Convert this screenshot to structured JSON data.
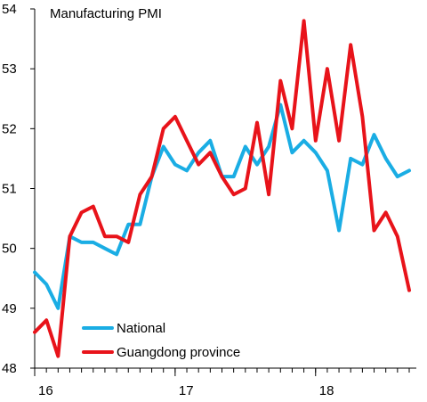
{
  "chart_data": {
    "type": "line",
    "title": "Manufacturing  PMI",
    "xlabel": "",
    "ylabel": "",
    "ylim": [
      48,
      54
    ],
    "yticks": [
      48,
      49,
      50,
      51,
      52,
      53,
      54
    ],
    "xlim": [
      0,
      32
    ],
    "xticks": [
      {
        "x": 0,
        "label": "16"
      },
      {
        "x": 12,
        "label": "17"
      },
      {
        "x": 24,
        "label": "18"
      }
    ],
    "grid": false,
    "legend_position": "bottom-left",
    "series": [
      {
        "name": "National",
        "color": "#1AADE4",
        "x": [
          0,
          1,
          2,
          3,
          4,
          5,
          6,
          7,
          8,
          9,
          10,
          11,
          12,
          13,
          14,
          15,
          16,
          17,
          18,
          19,
          20,
          21,
          22,
          23,
          24,
          25,
          26,
          27,
          28,
          29,
          30,
          31,
          32
        ],
        "values": [
          49.6,
          49.4,
          49.0,
          50.2,
          50.1,
          50.1,
          50.0,
          49.9,
          50.4,
          50.4,
          51.2,
          51.7,
          51.4,
          51.3,
          51.6,
          51.8,
          51.2,
          51.2,
          51.7,
          51.4,
          51.7,
          52.4,
          51.6,
          51.8,
          51.6,
          51.3,
          50.3,
          51.5,
          51.4,
          51.9,
          51.5,
          51.2,
          51.3
        ]
      },
      {
        "name": "Guangdong province",
        "color": "#E8131A",
        "x": [
          0,
          1,
          2,
          3,
          4,
          5,
          6,
          7,
          8,
          9,
          10,
          11,
          12,
          13,
          14,
          15,
          16,
          17,
          18,
          19,
          20,
          21,
          22,
          23,
          24,
          25,
          26,
          27,
          28,
          29,
          30,
          31,
          32
        ],
        "values": [
          48.6,
          48.8,
          48.2,
          50.2,
          50.6,
          50.7,
          50.2,
          50.2,
          50.1,
          50.9,
          51.2,
          52.0,
          52.2,
          51.8,
          51.4,
          51.6,
          51.2,
          50.9,
          51.0,
          52.1,
          50.9,
          52.8,
          52.0,
          53.8,
          51.8,
          53.0,
          51.8,
          53.4,
          52.2,
          50.3,
          50.6,
          50.2,
          49.3
        ]
      }
    ]
  }
}
